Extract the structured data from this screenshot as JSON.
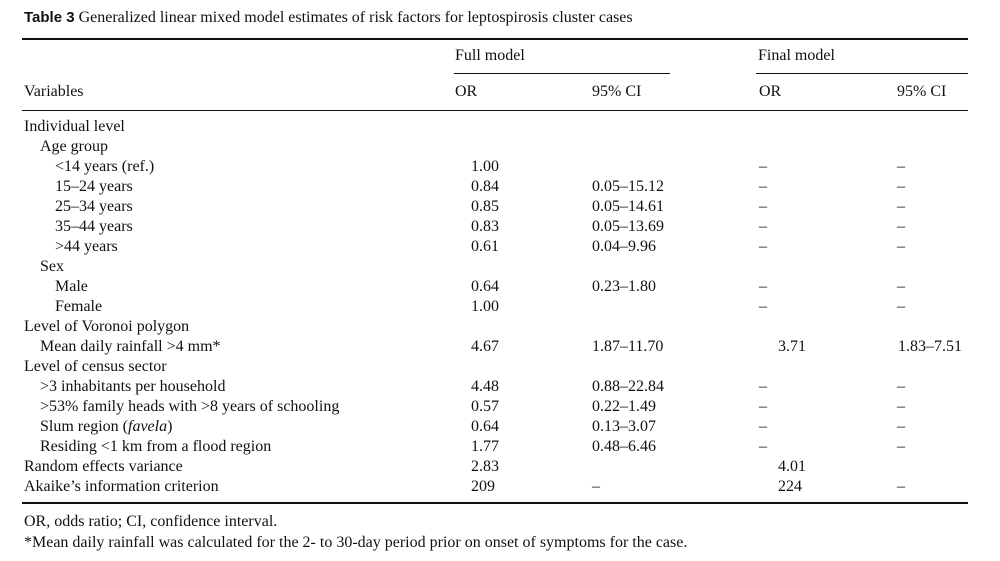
{
  "caption": {
    "label": "Table 3",
    "text": "Generalized linear mixed model estimates of risk factors for leptospirosis cluster cases"
  },
  "header": {
    "variables": "Variables",
    "full_model": "Full model",
    "final_model": "Final model",
    "or": "OR",
    "ci": "95% CI"
  },
  "rows": [
    {
      "label": "Individual level",
      "indent": 0,
      "or_full": "",
      "ci_full": "",
      "or_final": "",
      "ci_final": ""
    },
    {
      "label": "Age group",
      "indent": 1,
      "or_full": "",
      "ci_full": "",
      "or_final": "",
      "ci_final": ""
    },
    {
      "label": "<14 years (ref.)",
      "indent": 2,
      "or_full": "1.00",
      "ci_full": "",
      "or_final": "–",
      "ci_final": "–"
    },
    {
      "label": "15–24 years",
      "indent": 2,
      "or_full": "0.84",
      "ci_full": "0.05–15.12",
      "or_final": "–",
      "ci_final": "–"
    },
    {
      "label": "25–34 years",
      "indent": 2,
      "or_full": "0.85",
      "ci_full": "0.05–14.61",
      "or_final": "–",
      "ci_final": "–"
    },
    {
      "label": "35–44 years",
      "indent": 2,
      "or_full": "0.83",
      "ci_full": "0.05–13.69",
      "or_final": "–",
      "ci_final": "–"
    },
    {
      "label": ">44 years",
      "indent": 2,
      "or_full": "0.61",
      "ci_full": "0.04–9.96",
      "or_final": "–",
      "ci_final": "–"
    },
    {
      "label": "Sex",
      "indent": 1,
      "or_full": "",
      "ci_full": "",
      "or_final": "",
      "ci_final": ""
    },
    {
      "label": "Male",
      "indent": 2,
      "or_full": "0.64",
      "ci_full": "0.23–1.80",
      "or_final": "–",
      "ci_final": "–"
    },
    {
      "label": "Female",
      "indent": 2,
      "or_full": "1.00",
      "ci_full": "",
      "or_final": "–",
      "ci_final": "–"
    },
    {
      "label": "Level of Voronoi polygon",
      "indent": 0,
      "or_full": "",
      "ci_full": "",
      "or_final": "",
      "ci_final": ""
    },
    {
      "label": "Mean daily rainfall >4 mm*",
      "indent": 1,
      "or_full": "4.67",
      "ci_full": "1.87–11.70",
      "or_final": "3.71",
      "ci_final": "1.83–7.51"
    },
    {
      "label": "Level of census sector",
      "indent": 0,
      "or_full": "",
      "ci_full": "",
      "or_final": "",
      "ci_final": ""
    },
    {
      "label": ">3 inhabitants per household",
      "indent": 1,
      "or_full": "4.48",
      "ci_full": "0.88–22.84",
      "or_final": "–",
      "ci_final": "–"
    },
    {
      "label": ">53% family heads with >8 years of schooling",
      "indent": 1,
      "or_full": "0.57",
      "ci_full": "0.22–1.49",
      "or_final": "–",
      "ci_final": "–"
    },
    {
      "label": "Slum region (",
      "italic": "favela",
      "label_end": ")",
      "indent": 1,
      "or_full": "0.64",
      "ci_full": "0.13–3.07",
      "or_final": "–",
      "ci_final": "–"
    },
    {
      "label": "Residing <1 km from a flood region",
      "indent": 1,
      "or_full": "1.77",
      "ci_full": "0.48–6.46",
      "or_final": "–",
      "ci_final": "–"
    },
    {
      "label": "Random effects variance",
      "indent": 0,
      "or_full": "2.83",
      "ci_full": "",
      "or_final": "4.01",
      "ci_final": ""
    },
    {
      "label": "Akaike’s information criterion",
      "indent": 0,
      "or_full": "209",
      "ci_full": "–",
      "or_final": "224",
      "ci_final": "–"
    }
  ],
  "footnotes": {
    "abbrev": "OR, odds ratio; CI, confidence interval.",
    "rainfall": "*Mean daily rainfall was calculated for the 2- to 30-day period prior on onset of symptoms for the case."
  }
}
